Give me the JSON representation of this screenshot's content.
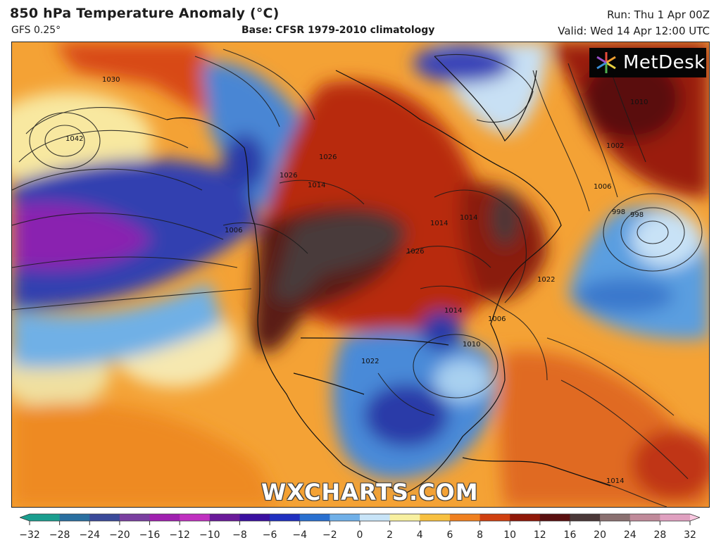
{
  "header": {
    "title": "850 hPa Temperature Anomaly (°C)",
    "model": "GFS 0.25°",
    "base": "Base: CFSR 1979-2010 climatology",
    "run": "Run: Thu 1 Apr 00Z",
    "valid": "Valid: Wed 14 Apr 12:00 UTC"
  },
  "logo": {
    "text": "MetDesk",
    "icon": "metdesk-star-icon"
  },
  "watermark": "WXCHARTS.COM",
  "isobar_labels": [
    "1030",
    "1042",
    "1006",
    "1026",
    "1014",
    "1026",
    "1014",
    "1014",
    "1022",
    "1006",
    "1010",
    "1022",
    "1002",
    "998",
    "1006",
    "1010",
    "998",
    "1014",
    "1026",
    "1014"
  ],
  "colorbar": {
    "ticks": [
      "−32",
      "−28",
      "−24",
      "−20",
      "−16",
      "−12",
      "−10",
      "−8",
      "−6",
      "−4",
      "−2",
      "0",
      "2",
      "4",
      "6",
      "8",
      "10",
      "12",
      "16",
      "20",
      "24",
      "28",
      "32"
    ],
    "colors": [
      "#1a9e8f",
      "#2a6fa0",
      "#3a4a9a",
      "#7a3fa0",
      "#a020b0",
      "#c030c0",
      "#6a1a9a",
      "#3a10a0",
      "#2030c0",
      "#2a70d0",
      "#70b0e8",
      "#c8e4f8",
      "#f8f0a0",
      "#f8c040",
      "#f08020",
      "#d04010",
      "#901808",
      "#5a1010",
      "#4a3838",
      "#8a7070",
      "#c08a9a",
      "#e0a0c0",
      "#f8c8e0"
    ]
  },
  "colors": {
    "background_warm": "#f5a030",
    "deep_warm": "#8a1808",
    "extreme_warm": "#4a3a3a",
    "cold": "#2a60c8",
    "extreme_cold": "#9a20b0"
  }
}
